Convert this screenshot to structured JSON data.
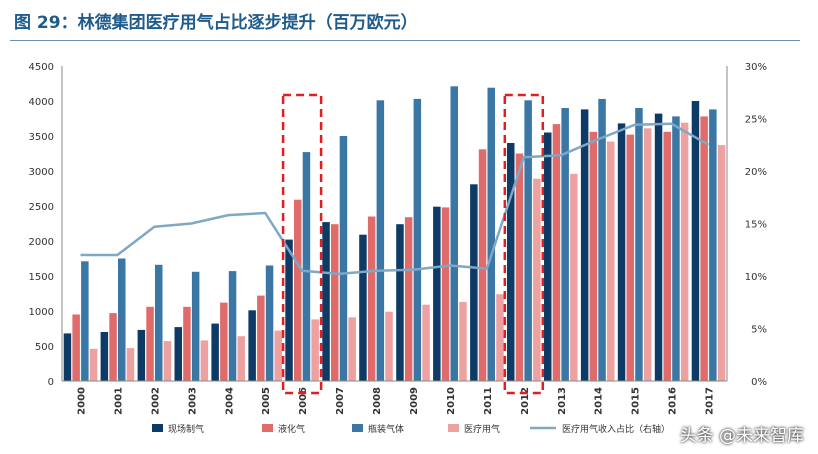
{
  "title": "图 29：林德集团医疗用气占比逐步提升（百万欧元）",
  "watermark": "头条 @未来智库",
  "colors": {
    "onsite": "#0d3b66",
    "liquid": "#e06b6b",
    "cylinder": "#3a77a5",
    "medical": "#eea1a1",
    "ratio_line": "#7fa7c6",
    "highlight": "#e02020"
  },
  "chart_data": {
    "type": "bar",
    "categories": [
      "2000",
      "2001",
      "2002",
      "2003",
      "2004",
      "2005",
      "2006",
      "2007",
      "2008",
      "2009",
      "2010",
      "2011",
      "2012",
      "2013",
      "2014",
      "2015",
      "2016",
      "2017"
    ],
    "category_labels": [
      "2000",
      "2001",
      "2002",
      "2003",
      "2004",
      "2005",
      "2006",
      "2007",
      "2008",
      "2009",
      "2010",
      "2011",
      "2012",
      "2013",
      "2014",
      "2015",
      "2016",
      "2017"
    ],
    "ylim": [
      0,
      4500
    ],
    "yticks": [
      0,
      500,
      1000,
      1500,
      2000,
      2500,
      3000,
      3500,
      4000,
      4500
    ],
    "y2lim": [
      0,
      30
    ],
    "y2ticks": [
      "0%",
      "5%",
      "10%",
      "15%",
      "20%",
      "25%",
      "30%"
    ],
    "series": [
      {
        "name": "现场制气",
        "key": "onsite",
        "values": [
          680,
          700,
          730,
          770,
          820,
          1010,
          2020,
          2270,
          2090,
          2240,
          2490,
          2810,
          3400,
          3550,
          3880,
          3680,
          3820,
          4000
        ]
      },
      {
        "name": "液化气",
        "key": "liquid",
        "values": [
          950,
          970,
          1060,
          1060,
          1120,
          1220,
          2590,
          2240,
          2350,
          2340,
          2480,
          3310,
          3250,
          3670,
          3560,
          3520,
          3560,
          3780
        ]
      },
      {
        "name": "瓶装气体",
        "key": "cylinder",
        "values": [
          1710,
          1750,
          1660,
          1560,
          1570,
          1650,
          3270,
          3500,
          4010,
          4030,
          4210,
          4190,
          4010,
          3900,
          4030,
          3900,
          3780,
          3880
        ]
      },
      {
        "name": "医疗用气",
        "key": "medical",
        "values": [
          460,
          470,
          570,
          580,
          640,
          720,
          880,
          910,
          990,
          1090,
          1130,
          1240,
          2890,
          2960,
          3420,
          3610,
          3690,
          3370
        ]
      }
    ],
    "line_series": {
      "name": "医疗用气收入占比（右轴）",
      "key": "ratio_line",
      "values": [
        12.0,
        12.0,
        14.7,
        15.0,
        15.8,
        16.0,
        10.5,
        10.2,
        10.5,
        10.6,
        11.0,
        10.7,
        21.3,
        21.5,
        23.0,
        24.4,
        24.5,
        22.5
      ]
    },
    "highlight_categories": [
      "2006",
      "2012"
    ]
  }
}
